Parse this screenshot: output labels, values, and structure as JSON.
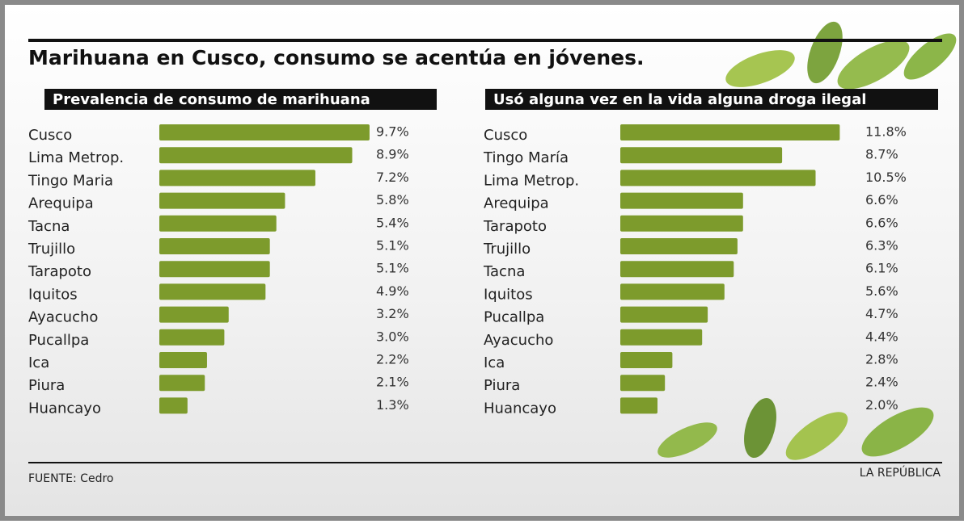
{
  "title": "Marihuana en Cusco, consumo se acentúa en jóvenes.",
  "source": "FUENTE:  Cedro",
  "credit": "LA REPÚBLICA",
  "chart_data": [
    {
      "type": "bar",
      "title": "Prevalencia de consumo de marihuana",
      "color": "#7d9b2c",
      "categories": [
        "Cusco",
        "Lima Metrop.",
        "Tingo Maria",
        "Arequipa",
        "Tacna",
        "Trujillo",
        "Tarapoto",
        "Iquitos",
        "Ayacucho",
        "Pucallpa",
        "Ica",
        "Piura",
        "Huancayo"
      ],
      "values": [
        9.7,
        8.9,
        7.2,
        5.8,
        5.4,
        5.1,
        5.1,
        4.9,
        3.2,
        3.0,
        2.2,
        2.1,
        1.3
      ],
      "value_labels": [
        "9.7%",
        "8.9%",
        "7.2%",
        "5.8%",
        "5.4%",
        "5.1%",
        "5.1%",
        "4.9%",
        "3.2%",
        "3.0%",
        "2.2%",
        "2.1%",
        "1.3%"
      ]
    },
    {
      "type": "bar",
      "title": "Usó alguna vez en la vida alguna droga ilegal",
      "color": "#7d9b2c",
      "categories": [
        "Cusco",
        "Tingo María",
        "Lima Metrop.",
        "Arequipa",
        "Tarapoto",
        "Trujillo",
        "Tacna",
        "Iquitos",
        "Pucallpa",
        "Ayacucho",
        "Ica",
        "Piura",
        "Huancayo"
      ],
      "values": [
        11.8,
        8.7,
        10.5,
        6.6,
        6.6,
        6.3,
        6.1,
        5.6,
        4.7,
        4.4,
        2.8,
        2.4,
        2.0
      ],
      "value_labels": [
        "11.8%",
        "8.7%",
        "10.5%",
        "6.6%",
        "6.6%",
        "6.3%",
        "6.1%",
        "5.6%",
        "4.7%",
        "4.4%",
        "2.8%",
        "2.4%",
        "2.0%"
      ]
    }
  ]
}
